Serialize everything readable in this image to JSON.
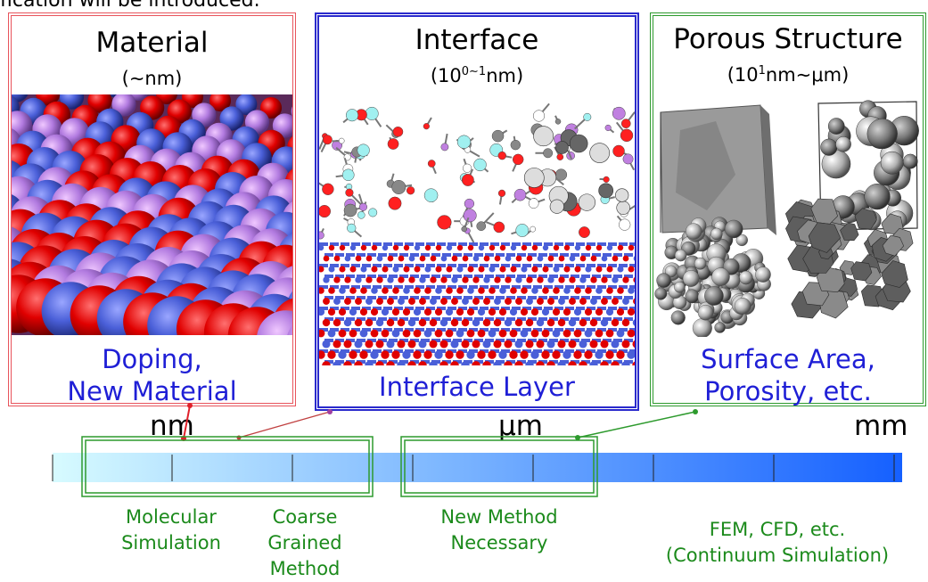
{
  "intro_text": "fication will be introduced.",
  "panels": {
    "material": {
      "title": "Material",
      "scale": "(∼nm)",
      "caption_line1": "Doping,",
      "caption_line2": "New Material"
    },
    "interface": {
      "title": "Interface",
      "scale_base": "(10",
      "scale_sup": "0∼1",
      "scale_unit": "nm)",
      "caption": "Interface Layer"
    },
    "porous": {
      "title": "Porous Structure",
      "scale_base": "(10",
      "scale_sup": "1",
      "scale_unit": "nm∼μm)",
      "caption_line1": "Surface Area,",
      "caption_line2": "Porosity, etc."
    }
  },
  "axis": {
    "labels": [
      "nm",
      "μm",
      "mm"
    ],
    "gradient_start": "#d7fbff",
    "gradient_end": "#1560ff"
  },
  "methods": {
    "molecular": [
      "Molecular",
      "Simulation"
    ],
    "coarse": [
      "Coarse",
      "Grained",
      "Method"
    ],
    "new": [
      "New Method",
      "Necessary"
    ],
    "fem": [
      "FEM, CFD, etc.",
      "(Continuum Simulation)"
    ]
  },
  "colors": {
    "material_frame": "#e8545c",
    "interface_frame": "#2a2acc",
    "porous_frame": "#2d9a2d",
    "caption_blue": "#1f1fd6",
    "method_green": "#1b8a1b"
  }
}
